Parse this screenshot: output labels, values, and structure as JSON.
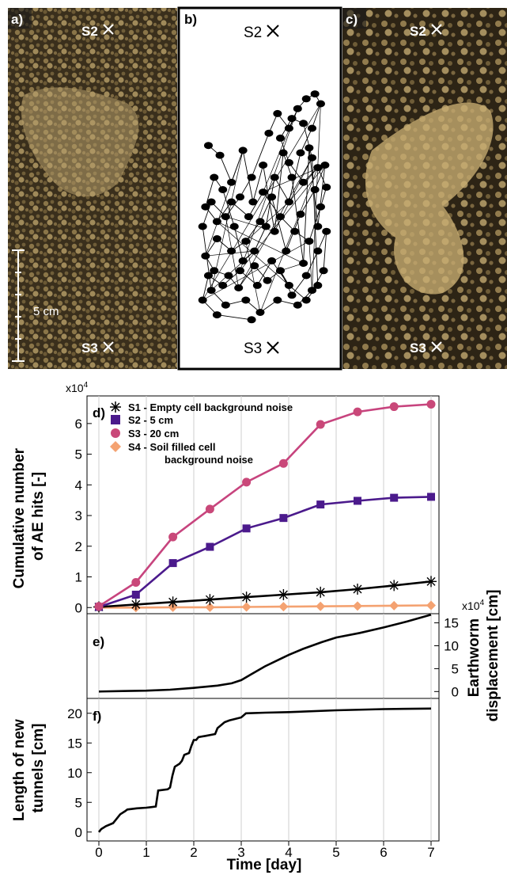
{
  "panels_top": {
    "a": {
      "letter": "a)",
      "top_marker": "S2",
      "bottom_marker": "S3",
      "scale_label": "5 cm"
    },
    "b": {
      "letter": "b)",
      "top_marker": "S2",
      "bottom_marker": "S3"
    },
    "c": {
      "letter": "c)",
      "top_marker": "S2",
      "bottom_marker": "S3"
    }
  },
  "colors": {
    "s1": "#000000",
    "s2": "#4b1a8c",
    "s3": "#c7447e",
    "s3_marker": "#c94879",
    "s4": "#f4a271",
    "soil_dark": "#2a2214",
    "soil_light": "#b09a6a",
    "grid": "#cfcfcf"
  },
  "chart_data": [
    {
      "panel": "d)",
      "type": "line",
      "xlabel": "Time [day]",
      "ylabel_line1": "Cumulative number",
      "ylabel_line2": "of AE hits [-]",
      "multiplier": "x10",
      "multiplier_exp": "4",
      "xlim": [
        0,
        7
      ],
      "ylim": [
        -0.2,
        6.9
      ],
      "yticks": [
        "0",
        "1",
        "2",
        "3",
        "4",
        "5",
        "6"
      ],
      "grid": "vertical",
      "legend_placement": "top-left",
      "series": [
        {
          "name": "S1 - Empty cell background noise",
          "marker": "asterisk",
          "color": "#000000",
          "x": [
            0,
            0.78,
            1.56,
            2.34,
            3.11,
            3.89,
            4.67,
            5.45,
            6.22,
            7.0
          ],
          "y": [
            0.02,
            0.1,
            0.18,
            0.26,
            0.34,
            0.42,
            0.5,
            0.6,
            0.72,
            0.85
          ]
        },
        {
          "name": "S2 - 5 cm",
          "marker": "square",
          "color": "#4b1a8c",
          "x": [
            0,
            0.78,
            1.56,
            2.34,
            3.11,
            3.89,
            4.67,
            5.45,
            6.22,
            7.0
          ],
          "y": [
            0.02,
            0.42,
            1.45,
            1.98,
            2.58,
            2.92,
            3.36,
            3.48,
            3.58,
            3.61
          ]
        },
        {
          "name": "S3 - 20 cm",
          "marker": "circle",
          "color": "#c7447e",
          "x": [
            0,
            0.78,
            1.56,
            2.34,
            3.11,
            3.89,
            4.67,
            5.45,
            6.22,
            7.0
          ],
          "y": [
            0.04,
            0.82,
            2.3,
            3.21,
            4.09,
            4.7,
            5.97,
            6.38,
            6.55,
            6.63
          ]
        },
        {
          "name": "S4 - Soil filled cell",
          "name2": "background noise",
          "marker": "diamond",
          "color": "#f4a271",
          "x": [
            0,
            0.78,
            1.56,
            2.34,
            3.11,
            3.89,
            4.67,
            5.45,
            6.22,
            7.0
          ],
          "y": [
            0.0,
            0.0,
            0.01,
            0.01,
            0.02,
            0.03,
            0.04,
            0.05,
            0.06,
            0.07
          ]
        }
      ]
    },
    {
      "panel": "e)",
      "type": "line",
      "ylabel_line1": "Earthworm",
      "ylabel_line2": "displacement [cm]",
      "multiplier": "x10",
      "multiplier_exp": "4",
      "xlim": [
        0,
        7
      ],
      "ylim": [
        -1.5,
        17
      ],
      "yticks": [
        "0",
        "5",
        "10",
        "15"
      ],
      "series": [
        {
          "color": "#000000",
          "x": [
            0,
            0.5,
            1.0,
            1.5,
            2.0,
            2.5,
            2.8,
            3.0,
            3.2,
            3.5,
            3.8,
            4.0,
            4.3,
            4.7,
            5.0,
            5.5,
            6.0,
            6.5,
            7.0
          ],
          "y": [
            0.0,
            0.1,
            0.2,
            0.4,
            0.8,
            1.3,
            1.8,
            2.5,
            3.7,
            5.5,
            7.0,
            8.0,
            9.3,
            10.8,
            11.8,
            12.8,
            14.0,
            15.3,
            16.8
          ]
        }
      ]
    },
    {
      "panel": "f)",
      "type": "line",
      "ylabel_line1": "Length of new",
      "ylabel_line2": "tunnels [cm]",
      "xlabel": "Time [day]",
      "xlim": [
        0,
        7
      ],
      "ylim": [
        -1.5,
        22.5
      ],
      "yticks": [
        "0",
        "5",
        "10",
        "15",
        "20"
      ],
      "xticks": [
        "0",
        "1",
        "2",
        "3",
        "4",
        "5",
        "6",
        "7"
      ],
      "series": [
        {
          "color": "#000000",
          "x": [
            0.0,
            0.05,
            0.15,
            0.3,
            0.35,
            0.45,
            0.55,
            0.6,
            0.8,
            1.0,
            1.1,
            1.2,
            1.25,
            1.45,
            1.5,
            1.55,
            1.6,
            1.7,
            1.75,
            1.8,
            1.9,
            1.95,
            2.0,
            2.05,
            2.1,
            2.25,
            2.45,
            2.5,
            2.65,
            2.75,
            2.85,
            3.0,
            3.1,
            3.5,
            4.0,
            5.0,
            6.0,
            7.0
          ],
          "y": [
            0.0,
            0.5,
            1.0,
            1.5,
            2.0,
            3.0,
            3.5,
            3.8,
            4.0,
            4.1,
            4.2,
            4.3,
            7.0,
            7.2,
            7.5,
            9.5,
            11.0,
            11.5,
            12.0,
            13.0,
            13.3,
            14.5,
            15.5,
            15.5,
            16.0,
            16.2,
            16.5,
            17.5,
            18.5,
            18.8,
            19.0,
            19.3,
            20.0,
            20.1,
            20.2,
            20.5,
            20.7,
            20.8
          ]
        }
      ]
    }
  ],
  "tracking": {
    "track_points": [
      [
        0.14,
        0.27
      ],
      [
        0.22,
        0.31
      ],
      [
        0.3,
        0.42
      ],
      [
        0.38,
        0.29
      ],
      [
        0.45,
        0.5
      ],
      [
        0.52,
        0.35
      ],
      [
        0.6,
        0.62
      ],
      [
        0.66,
        0.3
      ],
      [
        0.72,
        0.4
      ],
      [
        0.8,
        0.75
      ],
      [
        0.84,
        0.28
      ],
      [
        0.9,
        0.6
      ],
      [
        0.95,
        0.35
      ],
      [
        0.88,
        0.45
      ],
      [
        0.78,
        0.55
      ],
      [
        0.68,
        0.7
      ],
      [
        0.58,
        0.48
      ],
      [
        0.5,
        0.58
      ],
      [
        0.4,
        0.66
      ],
      [
        0.3,
        0.7
      ],
      [
        0.2,
        0.65
      ],
      [
        0.12,
        0.72
      ],
      [
        0.18,
        0.78
      ],
      [
        0.28,
        0.8
      ],
      [
        0.35,
        0.85
      ],
      [
        0.46,
        0.76
      ],
      [
        0.55,
        0.82
      ],
      [
        0.64,
        0.78
      ],
      [
        0.72,
        0.88
      ],
      [
        0.82,
        0.8
      ],
      [
        0.9,
        0.7
      ],
      [
        0.96,
        0.62
      ],
      [
        0.94,
        0.78
      ],
      [
        0.86,
        0.86
      ],
      [
        0.76,
        0.92
      ],
      [
        0.62,
        0.9
      ],
      [
        0.5,
        0.95
      ],
      [
        0.4,
        0.9
      ],
      [
        0.26,
        0.92
      ],
      [
        0.16,
        0.86
      ],
      [
        0.1,
        0.6
      ],
      [
        0.16,
        0.5
      ],
      [
        0.26,
        0.56
      ],
      [
        0.36,
        0.48
      ],
      [
        0.44,
        0.4
      ],
      [
        0.56,
        0.22
      ],
      [
        0.62,
        0.14
      ],
      [
        0.7,
        0.2
      ],
      [
        0.76,
        0.12
      ],
      [
        0.82,
        0.08
      ],
      [
        0.88,
        0.06
      ],
      [
        0.92,
        0.1
      ],
      [
        0.86,
        0.2
      ],
      [
        0.78,
        0.3
      ],
      [
        0.7,
        0.5
      ],
      [
        0.6,
        0.4
      ],
      [
        0.54,
        0.6
      ],
      [
        0.46,
        0.7
      ],
      [
        0.38,
        0.74
      ],
      [
        0.32,
        0.6
      ],
      [
        0.24,
        0.45
      ],
      [
        0.18,
        0.4
      ],
      [
        0.12,
        0.52
      ],
      [
        0.2,
        0.58
      ],
      [
        0.3,
        0.5
      ],
      [
        0.42,
        0.56
      ],
      [
        0.52,
        0.46
      ],
      [
        0.64,
        0.56
      ],
      [
        0.74,
        0.62
      ],
      [
        0.84,
        0.66
      ],
      [
        0.92,
        0.52
      ],
      [
        0.96,
        0.44
      ],
      [
        0.9,
        0.36
      ],
      [
        0.8,
        0.42
      ],
      [
        0.7,
        0.34
      ],
      [
        0.64,
        0.24
      ],
      [
        0.72,
        0.16
      ],
      [
        0.8,
        0.18
      ],
      [
        0.86,
        0.32
      ],
      [
        0.9,
        0.84
      ],
      [
        0.82,
        0.9
      ],
      [
        0.7,
        0.84
      ],
      [
        0.58,
        0.74
      ],
      [
        0.48,
        0.84
      ],
      [
        0.36,
        0.78
      ],
      [
        0.24,
        0.84
      ],
      [
        0.14,
        0.8
      ],
      [
        0.1,
        0.9
      ],
      [
        0.2,
        0.96
      ],
      [
        0.44,
        0.98
      ]
    ]
  }
}
